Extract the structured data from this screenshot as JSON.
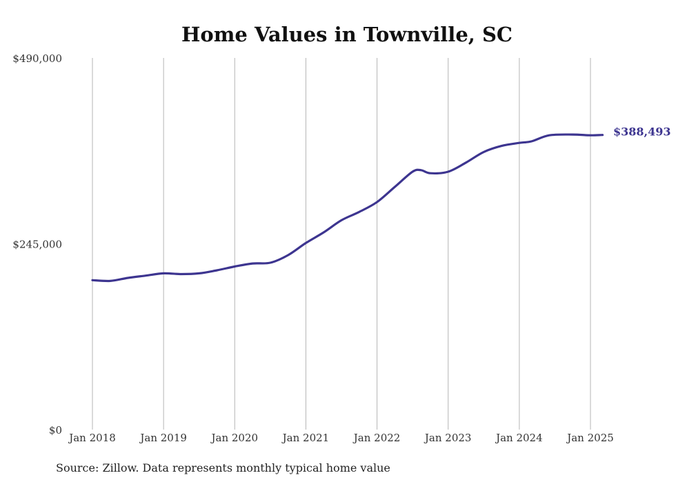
{
  "chart_data": {
    "type": "line",
    "title": "Home Values in Townville, SC",
    "xlabel": "",
    "ylabel": "",
    "ylim": [
      0,
      490000
    ],
    "ytick_values": [
      0,
      245000,
      490000
    ],
    "ytick_labels": [
      "$0",
      "$245,000",
      "$490,000"
    ],
    "xticks": [
      {
        "label": "Jan 2018",
        "x": 2018.0
      },
      {
        "label": "Jan 2019",
        "x": 2019.0
      },
      {
        "label": "Jan 2020",
        "x": 2020.0
      },
      {
        "label": "Jan 2021",
        "x": 2021.0
      },
      {
        "label": "Jan 2022",
        "x": 2022.0
      },
      {
        "label": "Jan 2023",
        "x": 2023.0
      },
      {
        "label": "Jan 2024",
        "x": 2024.0
      },
      {
        "label": "Jan 2025",
        "x": 2025.0
      }
    ],
    "grid": "vertical",
    "line_color": "#3d3590",
    "end_label": "$388,493",
    "source": "Source: Zillow. Data represents monthly typical home value",
    "series": [
      {
        "points": [
          {
            "x": 2018.0,
            "y": 197000
          },
          {
            "x": 2018.25,
            "y": 196000
          },
          {
            "x": 2018.5,
            "y": 200000
          },
          {
            "x": 2018.75,
            "y": 203000
          },
          {
            "x": 2019.0,
            "y": 206000
          },
          {
            "x": 2019.25,
            "y": 205000
          },
          {
            "x": 2019.5,
            "y": 206000
          },
          {
            "x": 2019.75,
            "y": 210000
          },
          {
            "x": 2020.0,
            "y": 215000
          },
          {
            "x": 2020.25,
            "y": 219000
          },
          {
            "x": 2020.5,
            "y": 220000
          },
          {
            "x": 2020.75,
            "y": 230000
          },
          {
            "x": 2021.0,
            "y": 246000
          },
          {
            "x": 2021.25,
            "y": 260000
          },
          {
            "x": 2021.5,
            "y": 276000
          },
          {
            "x": 2021.75,
            "y": 287000
          },
          {
            "x": 2022.0,
            "y": 300000
          },
          {
            "x": 2022.25,
            "y": 320000
          },
          {
            "x": 2022.5,
            "y": 340000
          },
          {
            "x": 2022.62,
            "y": 342000
          },
          {
            "x": 2022.75,
            "y": 338000
          },
          {
            "x": 2023.0,
            "y": 340000
          },
          {
            "x": 2023.25,
            "y": 352000
          },
          {
            "x": 2023.5,
            "y": 366000
          },
          {
            "x": 2023.75,
            "y": 374000
          },
          {
            "x": 2024.0,
            "y": 378000
          },
          {
            "x": 2024.17,
            "y": 380000
          },
          {
            "x": 2024.42,
            "y": 388000
          },
          {
            "x": 2024.75,
            "y": 389000
          },
          {
            "x": 2025.0,
            "y": 388000
          },
          {
            "x": 2025.17,
            "y": 388493
          }
        ]
      }
    ]
  }
}
